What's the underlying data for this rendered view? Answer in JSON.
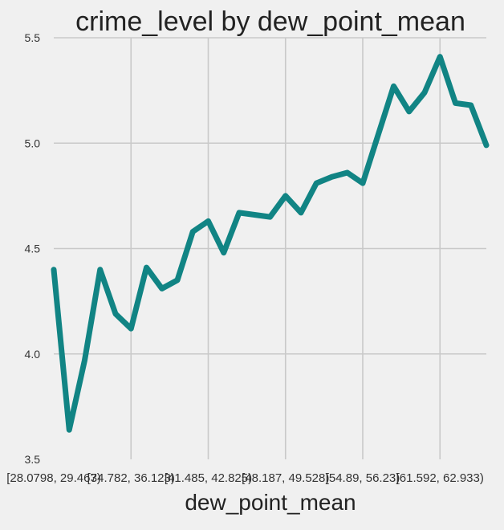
{
  "chart_data": {
    "type": "line",
    "title": "crime_level by dew_point_mean",
    "xlabel": "dew_point_mean",
    "ylabel": "",
    "ylim": [
      3.5,
      5.5
    ],
    "yticks": [
      3.5,
      4.0,
      4.5,
      5.0,
      5.5
    ],
    "ytick_labels": [
      "3.5",
      "4.0",
      "4.5",
      "5.0",
      "5.5"
    ],
    "xtick_labels": [
      "[28.0798, 29.467)",
      "[34.782, 36.123)",
      "[41.485, 42.825)",
      "[48.187, 49.528)",
      "[54.89, 56.23)",
      "[61.592, 62.933)"
    ],
    "xtick_index": [
      0,
      5,
      10,
      15,
      20,
      25
    ],
    "grid": true,
    "legend": "none",
    "x": [
      0,
      1,
      2,
      3,
      4,
      5,
      6,
      7,
      8,
      9,
      10,
      11,
      12,
      13,
      14,
      15,
      16,
      17,
      18,
      19,
      20,
      21,
      22,
      23,
      24,
      25,
      26,
      27,
      28
    ],
    "series": [
      {
        "values": [
          4.4,
          3.64,
          3.97,
          4.4,
          4.19,
          4.12,
          4.41,
          4.31,
          4.35,
          4.58,
          4.63,
          4.48,
          4.67,
          4.66,
          4.65,
          4.75,
          4.67,
          4.81,
          4.84,
          4.86,
          4.81,
          5.04,
          5.27,
          5.15,
          5.24,
          5.41,
          5.19,
          5.18,
          4.99
        ],
        "color": "#118484"
      }
    ]
  },
  "colors": {
    "background": "#f0f0f0",
    "grid": "#c9c9c9",
    "line": "#118484"
  }
}
